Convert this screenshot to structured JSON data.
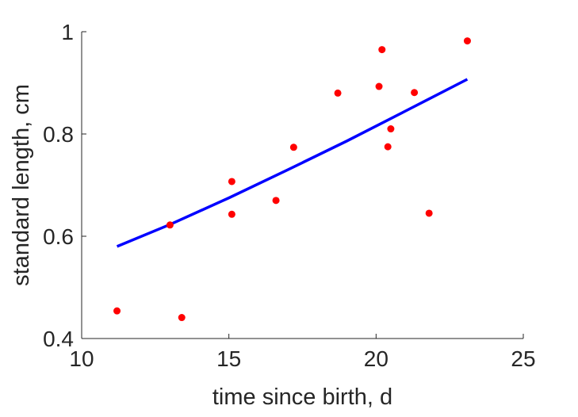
{
  "chart_data": {
    "type": "scatter",
    "title": "",
    "xlabel": "time since birth, d",
    "ylabel": "standard length, cm",
    "xlim": [
      10,
      25
    ],
    "ylim": [
      0.4,
      1.0
    ],
    "xticks": [
      10,
      15,
      20,
      25
    ],
    "yticks": [
      0.4,
      0.6,
      0.8,
      1.0
    ],
    "xtick_labels": [
      "10",
      "15",
      "20",
      "25"
    ],
    "ytick_labels": [
      "0.4",
      "0.6",
      "0.8",
      "1"
    ],
    "grid": false,
    "series": [
      {
        "type": "scatter",
        "color": "#ff0000",
        "points": [
          {
            "x": 11.2,
            "y": 0.454
          },
          {
            "x": 13.0,
            "y": 0.622
          },
          {
            "x": 13.4,
            "y": 0.441
          },
          {
            "x": 15.1,
            "y": 0.707
          },
          {
            "x": 15.1,
            "y": 0.643
          },
          {
            "x": 16.6,
            "y": 0.67
          },
          {
            "x": 17.2,
            "y": 0.774
          },
          {
            "x": 18.7,
            "y": 0.88
          },
          {
            "x": 20.1,
            "y": 0.893
          },
          {
            "x": 20.2,
            "y": 0.965
          },
          {
            "x": 20.4,
            "y": 0.775
          },
          {
            "x": 20.5,
            "y": 0.81
          },
          {
            "x": 21.3,
            "y": 0.881
          },
          {
            "x": 21.8,
            "y": 0.645
          },
          {
            "x": 23.1,
            "y": 0.982
          }
        ]
      },
      {
        "type": "line",
        "color": "#0000ff",
        "points": [
          {
            "x": 11.2,
            "y": 0.58
          },
          {
            "x": 13.0,
            "y": 0.623
          },
          {
            "x": 15.0,
            "y": 0.675
          },
          {
            "x": 17.0,
            "y": 0.73
          },
          {
            "x": 19.0,
            "y": 0.786
          },
          {
            "x": 21.0,
            "y": 0.845
          },
          {
            "x": 23.1,
            "y": 0.907
          }
        ]
      }
    ]
  }
}
